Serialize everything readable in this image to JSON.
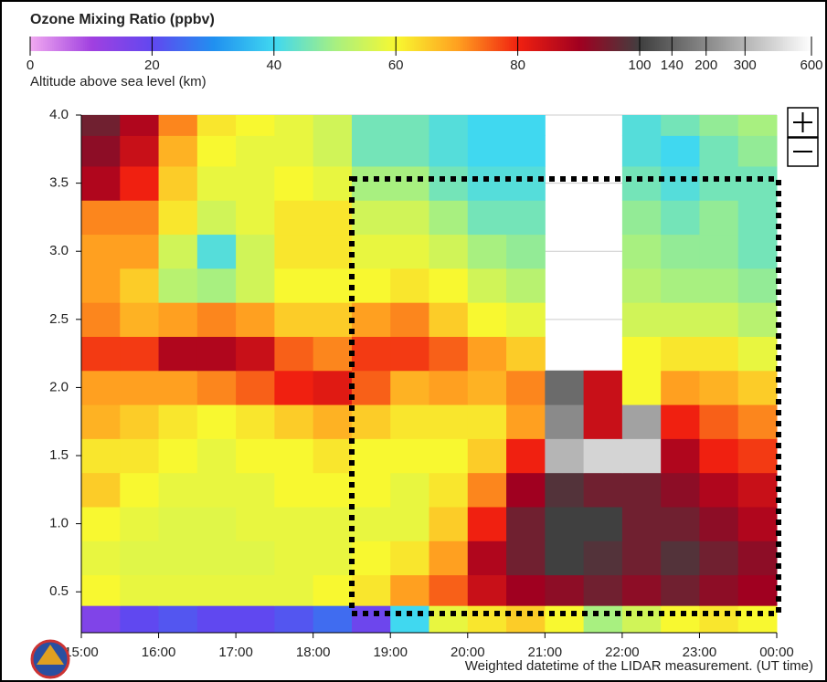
{
  "chart_data": {
    "type": "heatmap",
    "title": "Ozone Mixing Ratio (ppbv)",
    "ylabel": "Altitude above sea level (km)",
    "xlabel": "Weighted datetime of the LIDAR measurement. (UT time)",
    "colorbar": {
      "ticks": [
        0,
        20,
        40,
        60,
        80,
        100,
        140,
        200,
        300,
        600
      ],
      "break": 100,
      "colors": [
        "#f0a8f0",
        "#a040e0",
        "#6048f0",
        "#2090f0",
        "#40d8f0",
        "#a8f080",
        "#f8f830",
        "#ffa020",
        "#f02010",
        "#a00020",
        "#404040"
      ],
      "high_color": "#ffffff"
    },
    "xlim": [
      15,
      24
    ],
    "xticks": [
      {
        "value": 15,
        "label": "15:00"
      },
      {
        "value": 16,
        "label": "16:00"
      },
      {
        "value": 17,
        "label": "17:00"
      },
      {
        "value": 18,
        "label": "18:00"
      },
      {
        "value": 19,
        "label": "19:00"
      },
      {
        "value": 20,
        "label": "20:00"
      },
      {
        "value": 21,
        "label": "21:00"
      },
      {
        "value": 22,
        "label": "22:00"
      },
      {
        "value": 23,
        "label": "23:00"
      },
      {
        "value": 24,
        "label": "00:00"
      }
    ],
    "ylim": [
      0.2,
      4.0
    ],
    "yticks": [
      0.5,
      {
        "value": 1,
        "label": "1.0"
      },
      1.5,
      {
        "value": 2,
        "label": "2.0"
      },
      2.5,
      {
        "value": 3,
        "label": "3.0"
      },
      3.5,
      {
        "value": 4,
        "label": "4.0"
      }
    ],
    "grid": true,
    "x": [
      15.25,
      15.75,
      16.25,
      16.75,
      17.25,
      17.75,
      18.25,
      18.75,
      19.25,
      19.75,
      20.25,
      20.75,
      21.25,
      21.75,
      22.25,
      22.75,
      23.25,
      23.75
    ],
    "y": [
      0.3,
      0.5,
      0.75,
      1.0,
      1.25,
      1.5,
      1.75,
      2.0,
      2.25,
      2.5,
      2.75,
      3.0,
      3.25,
      3.5,
      3.75,
      3.95
    ],
    "z": [
      [
        15,
        20,
        22,
        20,
        20,
        22,
        25,
        18,
        40,
        58,
        62,
        65,
        60,
        50,
        55,
        60,
        62,
        60
      ],
      [
        60,
        58,
        58,
        58,
        58,
        58,
        60,
        62,
        70,
        75,
        85,
        90,
        92,
        95,
        92,
        95,
        92,
        90
      ],
      [
        58,
        57,
        57,
        57,
        57,
        58,
        58,
        60,
        62,
        70,
        88,
        95,
        100,
        98,
        95,
        98,
        95,
        92
      ],
      [
        60,
        58,
        57,
        57,
        58,
        58,
        58,
        58,
        58,
        65,
        80,
        95,
        100,
        100,
        95,
        95,
        92,
        88
      ],
      [
        65,
        60,
        58,
        58,
        58,
        60,
        60,
        60,
        58,
        62,
        72,
        90,
        98,
        95,
        95,
        92,
        88,
        85
      ],
      [
        62,
        62,
        60,
        58,
        60,
        60,
        62,
        60,
        60,
        60,
        65,
        80,
        300,
        400,
        400,
        88,
        80,
        78
      ],
      [
        68,
        65,
        62,
        60,
        62,
        65,
        68,
        65,
        62,
        62,
        62,
        70,
        200,
        85,
        250,
        80,
        75,
        72
      ],
      [
        70,
        70,
        70,
        72,
        75,
        80,
        82,
        75,
        68,
        70,
        68,
        72,
        150,
        85,
        60,
        70,
        68,
        65
      ],
      [
        78,
        78,
        88,
        88,
        85,
        75,
        72,
        78,
        78,
        75,
        70,
        65,
        null,
        null,
        60,
        62,
        62,
        58
      ],
      [
        72,
        68,
        70,
        72,
        70,
        65,
        65,
        70,
        72,
        65,
        60,
        58,
        null,
        null,
        55,
        55,
        55,
        52
      ],
      [
        70,
        65,
        52,
        50,
        55,
        60,
        60,
        60,
        62,
        60,
        55,
        52,
        null,
        null,
        52,
        50,
        50,
        48
      ],
      [
        70,
        70,
        55,
        42,
        55,
        62,
        62,
        58,
        58,
        55,
        50,
        48,
        null,
        null,
        50,
        48,
        48,
        45
      ],
      [
        72,
        72,
        62,
        55,
        58,
        62,
        62,
        55,
        55,
        50,
        45,
        45,
        null,
        null,
        48,
        45,
        48,
        45
      ],
      [
        88,
        80,
        65,
        58,
        58,
        60,
        58,
        50,
        50,
        45,
        42,
        42,
        null,
        null,
        45,
        42,
        45,
        45
      ],
      [
        92,
        85,
        68,
        60,
        58,
        58,
        55,
        45,
        45,
        42,
        40,
        40,
        null,
        null,
        42,
        40,
        45,
        48
      ],
      [
        95,
        88,
        72,
        62,
        60,
        58,
        55,
        45,
        45,
        42,
        40,
        40,
        null,
        null,
        42,
        45,
        48,
        50
      ]
    ]
  }
}
